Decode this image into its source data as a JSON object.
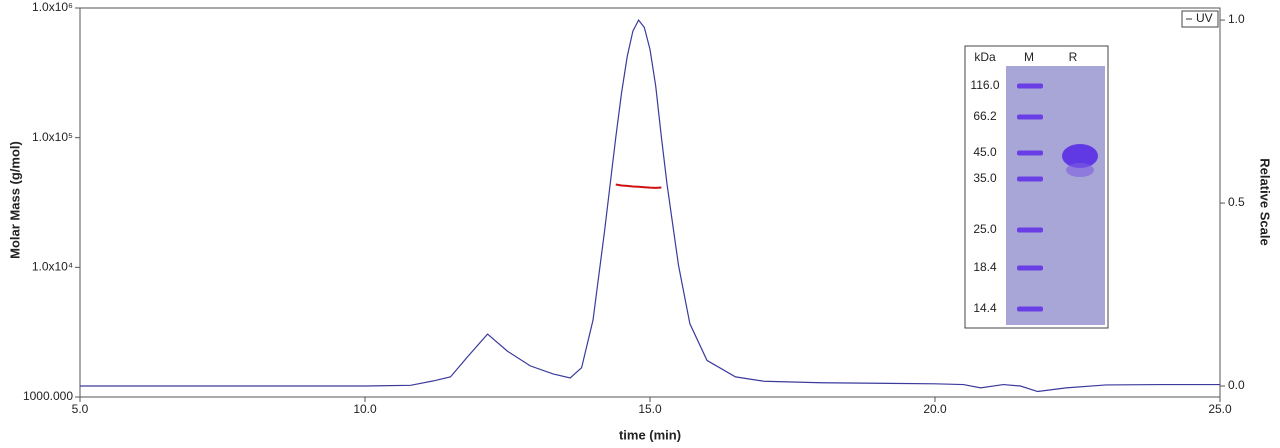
{
  "chart_data": {
    "type": "line",
    "xlabel": "time (min)",
    "ylabel": "Molar Mass (g/mol)",
    "y2label": "Relative Scale",
    "x": [
      5,
      8,
      10,
      10.8,
      11.2,
      11.5,
      11.8,
      12.15,
      12.5,
      12.9,
      13.3,
      13.6,
      13.8,
      14.0,
      14.2,
      14.4,
      14.5,
      14.6,
      14.7,
      14.8,
      14.9,
      15.0,
      15.1,
      15.2,
      15.3,
      15.5,
      15.7,
      16.0,
      16.5,
      17.0,
      18.0,
      20.0,
      20.5,
      20.8,
      21.2,
      21.5,
      21.8,
      22.3,
      23.0,
      24.0,
      25.0
    ],
    "series": [
      {
        "name": "UV",
        "color": "#3a3a9c",
        "axis": "y2",
        "values": [
          0.0,
          0.0,
          0.0,
          0.002,
          0.014,
          0.025,
          0.08,
          0.142,
          0.095,
          0.055,
          0.033,
          0.022,
          0.05,
          0.18,
          0.42,
          0.68,
          0.8,
          0.9,
          0.97,
          1.0,
          0.98,
          0.92,
          0.82,
          0.68,
          0.55,
          0.33,
          0.17,
          0.07,
          0.025,
          0.013,
          0.009,
          0.006,
          0.004,
          -0.005,
          0.004,
          0.0,
          -0.015,
          -0.005,
          0.003,
          0.004,
          0.004
        ]
      },
      {
        "color": "#d01010",
        "axis": "y",
        "values": [
          null,
          null,
          null,
          null,
          null,
          null,
          null,
          null,
          null,
          null,
          null,
          null,
          null,
          null,
          null,
          43500,
          42800,
          42500,
          42000,
          41800,
          41500,
          41200,
          41000,
          41300,
          null,
          null,
          null,
          null,
          null,
          null,
          null,
          null,
          null,
          null,
          null,
          null,
          null,
          null,
          null,
          null,
          null
        ]
      }
    ],
    "xlim": [
      5,
      25
    ],
    "xticks": [
      {
        "value": 5,
        "label": "5.0"
      },
      {
        "value": 10,
        "label": "10.0"
      },
      {
        "value": 15,
        "label": "15.0"
      },
      {
        "value": 20,
        "label": "20.0"
      },
      {
        "value": 25,
        "label": "25.0"
      }
    ],
    "ylim": [
      1000,
      1000000
    ],
    "ylog": true,
    "yticks": [
      {
        "value": 1000,
        "label": "1000.000"
      },
      {
        "value": 10000,
        "label": "1.0x10⁴"
      },
      {
        "value": 100000,
        "label": "1.0x10⁵"
      },
      {
        "value": 1000000,
        "label": "1.0x10⁶"
      }
    ],
    "y2lim": [
      -0.03,
      1.033
    ],
    "y2ticks": [
      {
        "value": 0,
        "label": "0.0"
      },
      {
        "value": 0.5,
        "label": "0.5"
      },
      {
        "value": 1,
        "label": "1.0"
      }
    ],
    "legend": "top-right"
  },
  "inset": {
    "header": [
      "kDa",
      "M",
      "R"
    ],
    "markers": [
      "116.0",
      "66.2",
      "45.0",
      "35.0",
      "25.0",
      "18.4",
      "14.4"
    ]
  }
}
